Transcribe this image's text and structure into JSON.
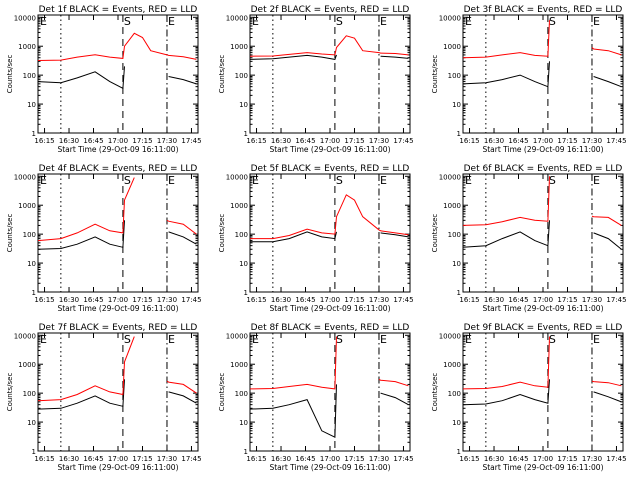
{
  "figure": {
    "panel_titles": [
      "Det 1f BLACK = Events, RED = LLD",
      "Det 2f BLACK = Events, RED = LLD",
      "Det 3f BLACK = Events, RED = LLD",
      "Det 4f BLACK = Events, RED = LLD",
      "Det 5f BLACK = Events, RED = LLD",
      "Det 6f BLACK = Events, RED = LLD",
      "Det 7f BLACK = Events, RED = LLD",
      "Det 8f BLACK = Events, RED = LLD",
      "Det 9f BLACK = Events, RED = LLD"
    ],
    "xlabel": "Start Time (29-Oct-09 16:11:00)",
    "ylabel": "Counts/sec",
    "x_tick_labels": [
      "16:15",
      "16:30",
      "16:45",
      "17:00",
      "17:15",
      "17:30",
      "17:45"
    ],
    "y_tick_labels": [
      "1",
      "10",
      "100",
      "1000",
      "10000"
    ],
    "markers": [
      "E",
      "S",
      "E"
    ],
    "colors": {
      "events": "#000000",
      "lld": "#ff0000"
    }
  },
  "chart_data": [
    {
      "type": "line",
      "title": "Det 1f BLACK = Events, RED = LLD",
      "xlabel": "Start Time (29-Oct-09 16:11:00)",
      "ylabel": "Counts/sec",
      "ylog": true,
      "ylim": [
        1,
        12000
      ],
      "xlim": [
        "16:11",
        "17:49"
      ],
      "x": [
        "16:11",
        "16:25",
        "16:35",
        "16:46",
        "16:55",
        "17:03",
        "17:04",
        "17:10",
        "17:15",
        "17:20",
        "17:30",
        "17:31",
        "17:40",
        "17:48"
      ],
      "series": [
        {
          "name": "BLACK = Events",
          "values": [
            60,
            55,
            80,
            130,
            60,
            35,
            200,
            null,
            null,
            null,
            null,
            90,
            70,
            50
          ]
        },
        {
          "name": "RED = LLD",
          "values": [
            320,
            330,
            420,
            510,
            420,
            380,
            1000,
            2800,
            2000,
            700,
            500,
            480,
            430,
            350
          ]
        }
      ],
      "vlines": [
        {
          "x": "16:25",
          "style": "dotted"
        },
        {
          "x": "17:03",
          "style": "dashed",
          "label": "S"
        },
        {
          "x": "17:30",
          "style": "dashdot",
          "label": "E"
        }
      ]
    },
    {
      "type": "line",
      "title": "Det 2f BLACK = Events, RED = LLD",
      "xlabel": "Start Time (29-Oct-09 16:11:00)",
      "ylabel": "Counts/sec",
      "ylog": true,
      "ylim": [
        1,
        12000
      ],
      "xlim": [
        "16:11",
        "17:49"
      ],
      "x": [
        "16:11",
        "16:25",
        "16:35",
        "16:46",
        "16:55",
        "17:03",
        "17:04",
        "17:10",
        "17:15",
        "17:20",
        "17:30",
        "17:31",
        "17:40",
        "17:48"
      ],
      "series": [
        {
          "name": "BLACK = Events",
          "values": [
            350,
            370,
            420,
            480,
            420,
            350,
            500,
            null,
            null,
            null,
            null,
            450,
            420,
            380
          ]
        },
        {
          "name": "RED = LLD",
          "values": [
            450,
            460,
            520,
            600,
            540,
            500,
            900,
            2300,
            1900,
            700,
            600,
            580,
            560,
            500
          ]
        }
      ],
      "vlines": [
        {
          "x": "16:25",
          "style": "dotted"
        },
        {
          "x": "17:03",
          "style": "dashed",
          "label": "S"
        },
        {
          "x": "17:30",
          "style": "dashdot",
          "label": "E"
        }
      ]
    },
    {
      "type": "line",
      "title": "Det 3f BLACK = Events, RED = LLD",
      "xlabel": "Start Time (29-Oct-09 16:11:00)",
      "ylabel": "Counts/sec",
      "ylog": true,
      "ylim": [
        1,
        12000
      ],
      "xlim": [
        "16:11",
        "17:49"
      ],
      "x": [
        "16:11",
        "16:25",
        "16:35",
        "16:46",
        "16:55",
        "17:03",
        "17:04",
        "17:10",
        "17:15",
        "17:20",
        "17:30",
        "17:31",
        "17:40",
        "17:48"
      ],
      "series": [
        {
          "name": "BLACK = Events",
          "values": [
            50,
            55,
            70,
            100,
            60,
            40,
            300,
            null,
            null,
            null,
            null,
            90,
            60,
            40
          ]
        },
        {
          "name": "RED = LLD",
          "values": [
            400,
            420,
            500,
            600,
            480,
            450,
            8000,
            null,
            null,
            null,
            900,
            800,
            700,
            500
          ]
        }
      ],
      "vlines": [
        {
          "x": "16:25",
          "style": "dotted"
        },
        {
          "x": "17:03",
          "style": "dashed",
          "label": "S"
        },
        {
          "x": "17:30",
          "style": "dashdot",
          "label": "E"
        }
      ]
    },
    {
      "type": "line",
      "title": "Det 4f BLACK = Events, RED = LLD",
      "xlabel": "Start Time (29-Oct-09 16:11:00)",
      "ylabel": "Counts/sec",
      "ylog": true,
      "ylim": [
        1,
        12000
      ],
      "xlim": [
        "16:11",
        "17:49"
      ],
      "x": [
        "16:11",
        "16:25",
        "16:35",
        "16:46",
        "16:55",
        "17:03",
        "17:04",
        "17:10",
        "17:15",
        "17:20",
        "17:30",
        "17:31",
        "17:40",
        "17:48"
      ],
      "series": [
        {
          "name": "BLACK = Events",
          "values": [
            30,
            32,
            45,
            80,
            45,
            35,
            300,
            null,
            null,
            null,
            null,
            120,
            80,
            45
          ]
        },
        {
          "name": "RED = LLD",
          "values": [
            60,
            70,
            110,
            220,
            130,
            110,
            1500,
            9000,
            null,
            null,
            300,
            280,
            220,
            100
          ]
        }
      ],
      "vlines": [
        {
          "x": "16:25",
          "style": "dotted"
        },
        {
          "x": "17:03",
          "style": "dashed",
          "label": "S"
        },
        {
          "x": "17:30",
          "style": "dashdot",
          "label": "E"
        }
      ]
    },
    {
      "type": "line",
      "title": "Det 5f BLACK = Events, RED = LLD",
      "xlabel": "Start Time (29-Oct-09 16:11:00)",
      "ylabel": "Counts/sec",
      "ylog": true,
      "ylim": [
        1,
        12000
      ],
      "xlim": [
        "16:11",
        "17:49"
      ],
      "x": [
        "16:11",
        "16:25",
        "16:35",
        "16:46",
        "16:55",
        "17:03",
        "17:04",
        "17:10",
        "17:15",
        "17:20",
        "17:30",
        "17:31",
        "17:40",
        "17:48"
      ],
      "series": [
        {
          "name": "BLACK = Events",
          "values": [
            55,
            55,
            70,
            120,
            80,
            70,
            120,
            null,
            null,
            null,
            null,
            110,
            95,
            80
          ]
        },
        {
          "name": "RED = LLD",
          "values": [
            70,
            70,
            90,
            150,
            110,
            100,
            400,
            2300,
            1500,
            400,
            140,
            130,
            110,
            95
          ]
        }
      ],
      "vlines": [
        {
          "x": "16:25",
          "style": "dotted"
        },
        {
          "x": "17:03",
          "style": "dashed",
          "label": "S"
        },
        {
          "x": "17:30",
          "style": "dashdot",
          "label": "E"
        }
      ]
    },
    {
      "type": "line",
      "title": "Det 6f BLACK = Events, RED = LLD",
      "xlabel": "Start Time (29-Oct-09 16:11:00)",
      "ylabel": "Counts/sec",
      "ylog": true,
      "ylim": [
        1,
        12000
      ],
      "xlim": [
        "16:11",
        "17:49"
      ],
      "x": [
        "16:11",
        "16:25",
        "16:35",
        "16:46",
        "16:55",
        "17:03",
        "17:04",
        "17:10",
        "17:15",
        "17:20",
        "17:30",
        "17:31",
        "17:40",
        "17:48"
      ],
      "series": [
        {
          "name": "BLACK = Events",
          "values": [
            35,
            40,
            70,
            120,
            60,
            40,
            300,
            null,
            null,
            null,
            null,
            110,
            70,
            30
          ]
        },
        {
          "name": "RED = LLD",
          "values": [
            200,
            210,
            270,
            380,
            300,
            280,
            10000,
            null,
            null,
            null,
            420,
            400,
            380,
            200
          ]
        }
      ],
      "vlines": [
        {
          "x": "16:25",
          "style": "dotted"
        },
        {
          "x": "17:03",
          "style": "dashed",
          "label": "S"
        },
        {
          "x": "17:30",
          "style": "dashdot",
          "label": "E"
        }
      ]
    },
    {
      "type": "line",
      "title": "Det 7f BLACK = Events, RED = LLD",
      "xlabel": "Start Time (29-Oct-09 16:11:00)",
      "ylabel": "Counts/sec",
      "ylog": true,
      "ylim": [
        1,
        12000
      ],
      "xlim": [
        "16:11",
        "17:49"
      ],
      "x": [
        "16:11",
        "16:25",
        "16:35",
        "16:46",
        "16:55",
        "17:03",
        "17:04",
        "17:10",
        "17:15",
        "17:20",
        "17:30",
        "17:31",
        "17:40",
        "17:48"
      ],
      "series": [
        {
          "name": "BLACK = Events",
          "values": [
            28,
            30,
            45,
            80,
            45,
            35,
            300,
            null,
            null,
            null,
            null,
            110,
            80,
            45
          ]
        },
        {
          "name": "RED = LLD",
          "values": [
            55,
            60,
            90,
            180,
            110,
            90,
            1200,
            9000,
            null,
            null,
            260,
            240,
            200,
            100
          ]
        }
      ],
      "vlines": [
        {
          "x": "16:25",
          "style": "dotted"
        },
        {
          "x": "17:03",
          "style": "dashed",
          "label": "S"
        },
        {
          "x": "17:30",
          "style": "dashdot",
          "label": "E"
        }
      ]
    },
    {
      "type": "line",
      "title": "Det 8f BLACK = Events, RED = LLD",
      "xlabel": "Start Time (29-Oct-09 16:11:00)",
      "ylabel": "Counts/sec",
      "ylog": true,
      "ylim": [
        1,
        12000
      ],
      "xlim": [
        "16:11",
        "17:49"
      ],
      "x": [
        "16:11",
        "16:25",
        "16:35",
        "16:46",
        "16:55",
        "17:03",
        "17:04",
        "17:10",
        "17:15",
        "17:20",
        "17:30",
        "17:31",
        "17:40",
        "17:48"
      ],
      "series": [
        {
          "name": "BLACK = Events",
          "values": [
            28,
            30,
            40,
            60,
            5,
            3,
            200,
            null,
            null,
            null,
            null,
            100,
            70,
            40
          ]
        },
        {
          "name": "RED = LLD",
          "values": [
            140,
            145,
            170,
            200,
            160,
            140,
            9000,
            null,
            null,
            null,
            300,
            280,
            250,
            180
          ]
        }
      ],
      "vlines": [
        {
          "x": "16:25",
          "style": "dotted"
        },
        {
          "x": "17:03",
          "style": "dashed",
          "label": "S"
        },
        {
          "x": "17:30",
          "style": "dashdot",
          "label": "E"
        }
      ]
    },
    {
      "type": "line",
      "title": "Det 9f BLACK = Events, RED = LLD",
      "xlabel": "Start Time (29-Oct-09 16:11:00)",
      "ylabel": "Counts/sec",
      "ylog": true,
      "ylim": [
        1,
        12000
      ],
      "xlim": [
        "16:11",
        "17:49"
      ],
      "x": [
        "16:11",
        "16:25",
        "16:35",
        "16:46",
        "16:55",
        "17:03",
        "17:04",
        "17:10",
        "17:15",
        "17:20",
        "17:30",
        "17:31",
        "17:40",
        "17:48"
      ],
      "series": [
        {
          "name": "BLACK = Events",
          "values": [
            40,
            42,
            55,
            90,
            60,
            45,
            300,
            null,
            null,
            null,
            null,
            110,
            75,
            50
          ]
        },
        {
          "name": "RED = LLD",
          "values": [
            140,
            145,
            170,
            240,
            180,
            160,
            9000,
            null,
            null,
            null,
            260,
            250,
            230,
            180
          ]
        }
      ],
      "vlines": [
        {
          "x": "16:25",
          "style": "dotted"
        },
        {
          "x": "17:03",
          "style": "dashed",
          "label": "S"
        },
        {
          "x": "17:30",
          "style": "dashdot",
          "label": "E"
        }
      ]
    }
  ]
}
